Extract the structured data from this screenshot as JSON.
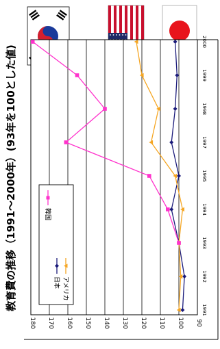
{
  "flags": {
    "korea": "korea-flag",
    "usa": "usa-flag",
    "japan": "japan-flag"
  },
  "chart_data": {
    "type": "line",
    "title": "教育費の推移（1991～2000年）(93年を100とした値)",
    "xlabel": "",
    "ylabel": "",
    "x": [
      "1991",
      "1992",
      "1993",
      "1994",
      "1995",
      "1997",
      "1998",
      "1999",
      "2000"
    ],
    "ylim": [
      90,
      180
    ],
    "yticks": [
      180,
      170,
      160,
      150,
      140,
      130,
      120,
      110,
      100,
      90
    ],
    "grid": true,
    "legend_position": "bottom-left",
    "series": [
      {
        "name": "日本",
        "color": "#1a1a7a",
        "marker": "diamond",
        "values": [
          98,
          97,
          100,
          104,
          100,
          104,
          102,
          101,
          102
        ]
      },
      {
        "name": "アメリカ",
        "color": "#f5a623",
        "marker": "triangle",
        "values": [
          100,
          99,
          100,
          98,
          102,
          115,
          111,
          120,
          123
        ]
      },
      {
        "name": "韓国",
        "color": "#ff33cc",
        "marker": "square",
        "values": [
          null,
          null,
          100,
          106,
          116,
          161,
          140,
          155,
          179
        ]
      }
    ]
  }
}
